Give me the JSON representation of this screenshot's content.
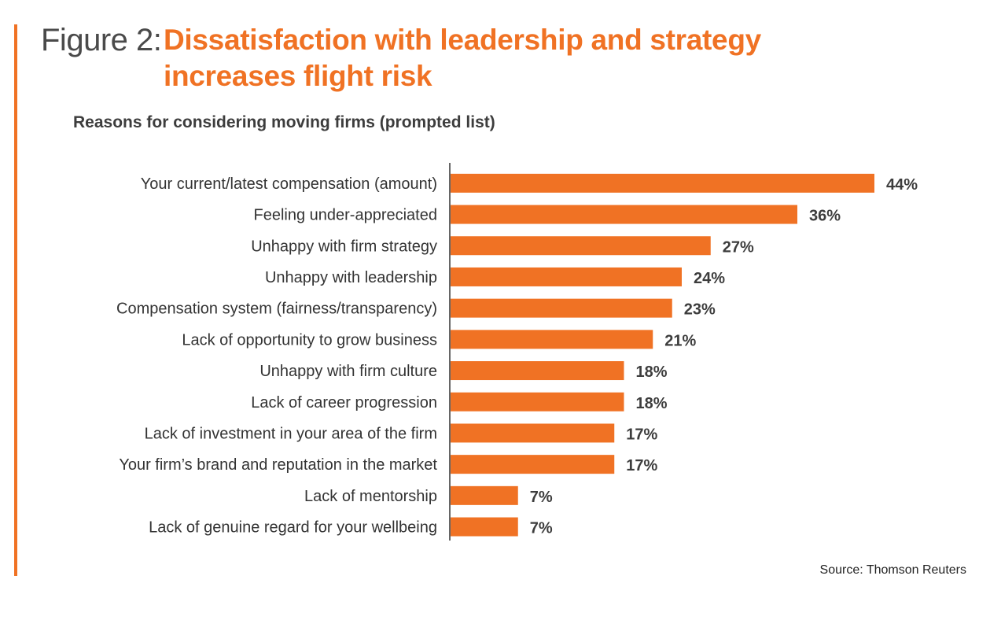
{
  "figure": {
    "prefix": "Figure 2:",
    "title": "Dissatisfaction with leadership and strategy increases flight risk"
  },
  "colors": {
    "accent": "#f07224",
    "bar": "#f07224",
    "text": "#333333"
  },
  "chart_data": {
    "type": "bar",
    "orientation": "horizontal",
    "title": "Reasons for considering moving firms (prompted list)",
    "xlabel": "",
    "ylabel": "",
    "xlim": [
      0,
      44
    ],
    "grid": false,
    "legend": "none",
    "categories": [
      "Your current/latest compensation (amount)",
      "Feeling under-appreciated",
      "Unhappy with firm strategy",
      "Unhappy with leadership",
      "Compensation system (fairness/transparency)",
      "Lack of opportunity to grow business",
      "Unhappy with firm culture",
      "Lack of career progression",
      "Lack of investment in your area of the firm",
      "Your firm’s brand and reputation in the market",
      "Lack of mentorship",
      "Lack of genuine regard for your wellbeing"
    ],
    "values": [
      44,
      36,
      27,
      24,
      23,
      21,
      18,
      18,
      17,
      17,
      7,
      7
    ],
    "value_labels": [
      "44%",
      "36%",
      "27%",
      "24%",
      "23%",
      "21%",
      "18%",
      "18%",
      "17%",
      "17%",
      "7%",
      "7%"
    ]
  },
  "source": "Source: Thomson Reuters"
}
